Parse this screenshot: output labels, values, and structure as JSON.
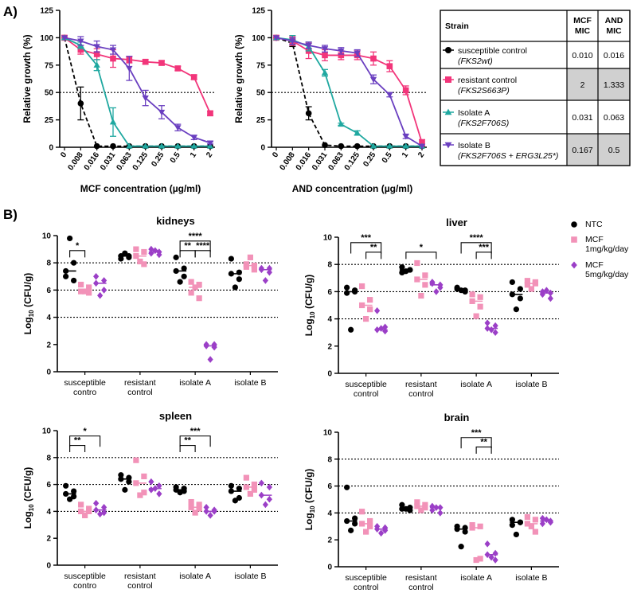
{
  "figure": {
    "panel_a_label": "A)",
    "panel_b_label": "B)"
  },
  "table": {
    "headers": [
      "Strain",
      "MCF MIC",
      "AND MIC"
    ],
    "rows": [
      {
        "name": "susceptible control",
        "genotype": "(FKS2wt)",
        "mcf": "0.010",
        "and": "0.016",
        "marker": "circle",
        "color": "#000000",
        "shaded": false
      },
      {
        "name": "resistant control",
        "genotype": "(FKS2S663P)",
        "mcf": "2",
        "and": "1.333",
        "marker": "square",
        "color": "#f2357a",
        "shaded": true
      },
      {
        "name": "Isolate A",
        "genotype": "(FKS2F706S)",
        "mcf": "0.031",
        "and": "0.063",
        "marker": "triangle",
        "color": "#1fa8a0",
        "shaded": false
      },
      {
        "name": "Isolate B",
        "genotype": "(FKS2F706S + ERG3L25*)",
        "mcf": "0.167",
        "and": "0.5",
        "marker": "invtriangle",
        "color": "#6a3fc0",
        "shaded": true
      }
    ]
  },
  "legend_b": {
    "items": [
      {
        "label": "NTC",
        "color": "#000000",
        "marker": "circle"
      },
      {
        "label": "MCF 1mg/kg/day",
        "color": "#f292b8",
        "marker": "square"
      },
      {
        "label": "MCF 5mg/kg/day",
        "color": "#9b3fc7",
        "marker": "diamond"
      }
    ]
  },
  "chart_data": [
    {
      "id": "mcf_growth",
      "type": "line",
      "title": "",
      "xlabel": "MCF concentration (µg/ml)",
      "ylabel": "Relative growth (%)",
      "categories": [
        "0",
        "0.008",
        "0.016",
        "0.031",
        "0.063",
        "0.125",
        "0.25",
        "0.5",
        "1",
        "2"
      ],
      "yticks": [
        0,
        25,
        50,
        75,
        100,
        125
      ],
      "ylim": [
        0,
        125
      ],
      "reference_line": 50,
      "series": [
        {
          "name": "susceptible control",
          "color": "#000000",
          "marker": "circle",
          "dashed": true,
          "values": [
            100,
            40,
            1,
            1,
            1,
            1,
            1,
            1,
            1,
            1
          ],
          "err": [
            0,
            15,
            0,
            0,
            0,
            0,
            0,
            0,
            0,
            0
          ]
        },
        {
          "name": "resistant control",
          "color": "#f2357a",
          "marker": "square",
          "dashed": false,
          "values": [
            100,
            89,
            85,
            81,
            80,
            78,
            77,
            72,
            64,
            31
          ],
          "err": [
            0,
            4,
            5,
            8,
            3,
            2,
            2,
            2,
            2,
            2
          ]
        },
        {
          "name": "Isolate A",
          "color": "#1fa8a0",
          "marker": "triangle",
          "dashed": false,
          "values": [
            100,
            93,
            75,
            23,
            1,
            1,
            1,
            1,
            1,
            1
          ],
          "err": [
            0,
            3,
            5,
            13,
            0,
            0,
            0,
            0,
            0,
            0
          ]
        },
        {
          "name": "Isolate B",
          "color": "#6a3fc0",
          "marker": "invtriangle",
          "dashed": false,
          "values": [
            100,
            97,
            92,
            89,
            72,
            45,
            32,
            18,
            9,
            4
          ],
          "err": [
            0,
            4,
            5,
            4,
            11,
            7,
            6,
            3,
            2,
            1
          ]
        }
      ]
    },
    {
      "id": "and_growth",
      "type": "line",
      "title": "",
      "xlabel": "AND concentration (µg/ml)",
      "ylabel": "Relative growth (%)",
      "categories": [
        "0",
        "0.008",
        "0.016",
        "0.031",
        "0.063",
        "0.125",
        "0.25",
        "0.5",
        "1",
        "2"
      ],
      "yticks": [
        0,
        25,
        50,
        75,
        100,
        125
      ],
      "ylim": [
        0,
        125
      ],
      "reference_line": 50,
      "series": [
        {
          "name": "susceptible control",
          "color": "#000000",
          "marker": "circle",
          "dashed": true,
          "values": [
            100,
            95,
            31,
            2,
            1,
            1,
            1,
            1,
            1,
            1
          ],
          "err": [
            0,
            3,
            6,
            0,
            0,
            0,
            0,
            0,
            0,
            0
          ]
        },
        {
          "name": "resistant control",
          "color": "#f2357a",
          "marker": "square",
          "dashed": false,
          "values": [
            100,
            97,
            88,
            84,
            84,
            84,
            81,
            74,
            52,
            4
          ],
          "err": [
            0,
            4,
            7,
            5,
            4,
            4,
            6,
            5,
            4,
            3
          ]
        },
        {
          "name": "Isolate A",
          "color": "#1fa8a0",
          "marker": "triangle",
          "dashed": false,
          "values": [
            100,
            98,
            92,
            68,
            21,
            13,
            1,
            1,
            1,
            1
          ],
          "err": [
            0,
            4,
            4,
            3,
            1,
            2,
            0,
            0,
            0,
            0
          ]
        },
        {
          "name": "Isolate B",
          "color": "#6a3fc0",
          "marker": "invtriangle",
          "dashed": false,
          "values": [
            100,
            97,
            93,
            90,
            88,
            86,
            62,
            48,
            10,
            1
          ],
          "err": [
            0,
            3,
            3,
            3,
            3,
            3,
            4,
            2,
            2,
            0
          ]
        }
      ]
    },
    {
      "id": "kidneys",
      "type": "scatter",
      "title": "kidneys",
      "ylabel": "Log10 (CFU/g)",
      "ylim": [
        0,
        10
      ],
      "yticks": [
        0,
        2,
        4,
        6,
        8,
        10
      ],
      "reference_lines": [
        4,
        6,
        8
      ],
      "groups": [
        "susceptible\ncontro",
        "resistant\ncontrol",
        "isolate A",
        "isolate B"
      ],
      "treatments": [
        "NTC",
        "MCF 1mg/kg/day",
        "MCF 5mg/kg/day"
      ],
      "points": [
        [
          [
            7.0,
            6.7,
            7.4,
            8.0,
            9.8
          ],
          [
            6.4,
            6.2,
            5.9,
            5.8,
            5.9
          ],
          [
            7.0,
            6.7,
            6.5,
            6.0,
            5.6
          ]
        ],
        [
          [
            8.3,
            8.5,
            8.5,
            8.4,
            8.7
          ],
          [
            9.0,
            8.8,
            8.5,
            7.9,
            8.1
          ],
          [
            9.0,
            8.8,
            8.7,
            8.6,
            8.9
          ]
        ],
        [
          [
            8.4,
            7.6,
            7.4,
            7.0,
            6.6
          ],
          [
            6.6,
            6.4,
            5.8,
            5.4,
            6.2
          ],
          [
            2.0,
            2.0,
            1.9,
            1.8,
            0.9
          ]
        ],
        [
          [
            8.3,
            7.3,
            7.2,
            6.8,
            6.2
          ],
          [
            7.9,
            7.8,
            7.7,
            7.5,
            8.4
          ],
          [
            7.6,
            7.6,
            7.5,
            7.3,
            6.7
          ]
        ]
      ],
      "medians": [
        [
          7.4,
          5.9,
          6.5
        ],
        [
          8.5,
          8.5,
          8.8
        ],
        [
          7.4,
          6.2,
          1.9
        ],
        [
          7.2,
          7.8,
          7.5
        ]
      ],
      "significance": [
        {
          "group": 0,
          "from": 0,
          "to": 1,
          "label": "*",
          "level": 0
        },
        {
          "group": 2,
          "from": 0,
          "to": 1,
          "label": "**",
          "level": 0
        },
        {
          "group": 2,
          "from": 1,
          "to": 2,
          "label": "****",
          "level": 0
        },
        {
          "group": 2,
          "from": 0,
          "to": 2,
          "label": "****",
          "level": 1
        }
      ]
    },
    {
      "id": "liver",
      "type": "scatter",
      "title": "liver",
      "ylabel": "Log10 (CFU/g)",
      "ylim": [
        0,
        10
      ],
      "yticks": [
        0,
        2,
        4,
        6,
        8,
        10
      ],
      "reference_lines": [
        4,
        6,
        8
      ],
      "groups": [
        "susceptible\ncontrol",
        "resistant\ncontrol",
        "isolate A",
        "isolate B"
      ],
      "treatments": [
        "NTC",
        "MCF 1mg/kg/day",
        "MCF 5mg/kg/day"
      ],
      "points": [
        [
          [
            6.3,
            6.0,
            5.9,
            6.1,
            3.2
          ],
          [
            6.4,
            5.4,
            5.0,
            4.7,
            4.0
          ],
          [
            4.6,
            3.4,
            3.2,
            3.1,
            3.3
          ]
        ],
        [
          [
            7.8,
            7.6,
            7.4,
            7.6,
            7.5
          ],
          [
            8.1,
            7.2,
            6.9,
            6.5,
            5.7
          ],
          [
            6.7,
            6.5,
            6.6,
            6.3,
            6.0
          ]
        ],
        [
          [
            6.3,
            6.1,
            6.2,
            6.0,
            6.1
          ],
          [
            5.8,
            5.6,
            5.3,
            4.9,
            4.2
          ],
          [
            3.7,
            3.5,
            3.3,
            3.0,
            3.2
          ]
        ],
        [
          [
            6.7,
            6.2,
            5.8,
            5.5,
            4.7
          ],
          [
            6.8,
            6.6,
            6.5,
            6.7,
            6.2
          ],
          [
            6.0,
            5.9,
            5.8,
            5.5,
            6.1
          ]
        ]
      ],
      "medians": [
        [
          6.0,
          5.0,
          3.2
        ],
        [
          7.6,
          6.9,
          6.5
        ],
        [
          6.1,
          5.3,
          3.3
        ],
        [
          5.8,
          6.6,
          5.9
        ]
      ],
      "significance": [
        {
          "group": 0,
          "from": 1,
          "to": 2,
          "label": "**",
          "level": 0
        },
        {
          "group": 0,
          "from": 0,
          "to": 2,
          "label": "***",
          "level": 1
        },
        {
          "group": 1,
          "from": 0,
          "to": 2,
          "label": "*",
          "level": 0
        },
        {
          "group": 2,
          "from": 1,
          "to": 2,
          "label": "***",
          "level": 0
        },
        {
          "group": 2,
          "from": 0,
          "to": 2,
          "label": "****",
          "level": 1
        }
      ]
    },
    {
      "id": "spleen",
      "type": "scatter",
      "title": "spleen",
      "ylabel": "Log10 (CFU/g)",
      "ylim": [
        0,
        10
      ],
      "yticks": [
        0,
        2,
        4,
        6,
        8,
        10
      ],
      "reference_lines": [
        4,
        6,
        8
      ],
      "groups": [
        "susceptible\ncontro",
        "resistant\ncontrol",
        "isolate A",
        "isolate B"
      ],
      "treatments": [
        "NTC",
        "MCF 1mg/kg/day",
        "MCF 5mg/kg/day"
      ],
      "points": [
        [
          [
            5.9,
            5.5,
            5.3,
            5.1,
            4.9
          ],
          [
            4.5,
            4.2,
            4.0,
            4.0,
            3.7
          ],
          [
            4.6,
            4.3,
            4.1,
            3.9,
            3.8
          ]
        ],
        [
          [
            6.7,
            6.5,
            6.4,
            6.2,
            5.6
          ],
          [
            7.8,
            6.6,
            6.1,
            5.4,
            5.2
          ],
          [
            6.2,
            5.9,
            5.6,
            5.3,
            5.7
          ]
        ],
        [
          [
            5.8,
            5.7,
            5.6,
            5.5,
            5.4
          ],
          [
            4.7,
            4.5,
            4.3,
            4.2,
            3.9
          ],
          [
            4.3,
            4.1,
            4.0,
            4.0,
            3.7
          ]
        ],
        [
          [
            5.9,
            5.7,
            5.5,
            5.0,
            4.8
          ],
          [
            6.5,
            6.0,
            5.8,
            5.6,
            5.3
          ],
          [
            6.1,
            5.8,
            5.2,
            4.9,
            4.5
          ]
        ]
      ],
      "medians": [
        [
          5.3,
          4.0,
          4.1
        ],
        [
          6.4,
          6.1,
          5.7
        ],
        [
          5.6,
          4.3,
          4.0
        ],
        [
          5.5,
          5.8,
          5.2
        ]
      ],
      "significance": [
        {
          "group": 0,
          "from": 0,
          "to": 1,
          "label": "**",
          "level": 0
        },
        {
          "group": 0,
          "from": 0,
          "to": 2,
          "label": "*",
          "level": 1
        },
        {
          "group": 2,
          "from": 0,
          "to": 1,
          "label": "**",
          "level": 0
        },
        {
          "group": 2,
          "from": 0,
          "to": 2,
          "label": "***",
          "level": 1
        }
      ]
    },
    {
      "id": "brain",
      "type": "scatter",
      "title": "brain",
      "ylabel": "Log10 (CFU/g)",
      "ylim": [
        0,
        10
      ],
      "yticks": [
        0,
        2,
        4,
        6,
        8,
        10
      ],
      "reference_lines": [
        4,
        6,
        8
      ],
      "groups": [
        "susceptible\ncontrol",
        "resistant\ncontrol",
        "isolate A",
        "isolate B"
      ],
      "treatments": [
        "NTC",
        "MCF 1mg/kg/day",
        "MCF 5mg/kg/day"
      ],
      "points": [
        [
          [
            5.9,
            3.6,
            3.4,
            3.2,
            2.7
          ],
          [
            4.1,
            3.4,
            3.2,
            3.0,
            2.6
          ],
          [
            3.0,
            2.9,
            2.8,
            2.7,
            2.5
          ]
        ],
        [
          [
            4.6,
            4.4,
            4.3,
            4.2,
            4.3
          ],
          [
            4.8,
            4.6,
            4.5,
            4.4,
            4.2
          ],
          [
            4.5,
            4.4,
            4.2,
            4.0,
            4.4
          ]
        ],
        [
          [
            3.0,
            2.9,
            2.8,
            2.6,
            1.5
          ],
          [
            3.1,
            3.0,
            2.9,
            0.6,
            0.5
          ],
          [
            1.7,
            1.0,
            0.9,
            0.5,
            0.7
          ]
        ],
        [
          [
            3.5,
            3.3,
            3.1,
            3.3,
            2.4
          ],
          [
            3.7,
            3.5,
            3.2,
            2.6,
            3.0
          ],
          [
            3.6,
            3.4,
            3.2,
            3.3,
            3.5
          ]
        ]
      ],
      "medians": [
        [
          3.4,
          3.2,
          2.8
        ],
        [
          4.3,
          4.5,
          4.4
        ],
        [
          2.8,
          2.9,
          0.9
        ],
        [
          3.3,
          3.2,
          3.4
        ]
      ],
      "significance": [
        {
          "group": 2,
          "from": 1,
          "to": 2,
          "label": "**",
          "level": 0
        },
        {
          "group": 2,
          "from": 0,
          "to": 2,
          "label": "***",
          "level": 1
        }
      ]
    }
  ]
}
